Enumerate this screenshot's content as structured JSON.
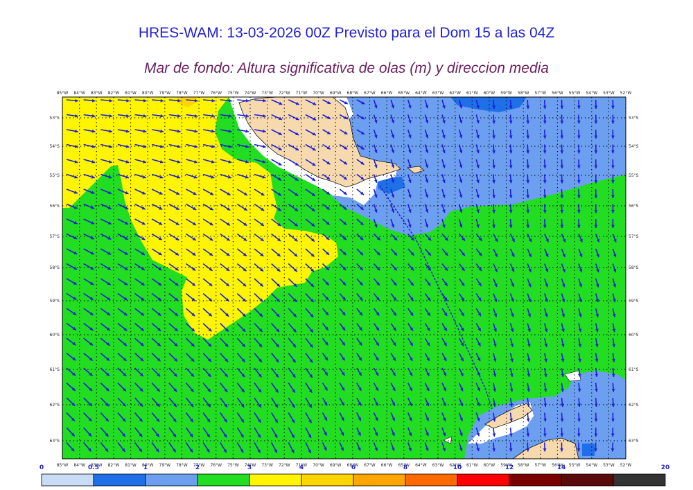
{
  "header": {
    "title": "HRES-WAM: 13-03-2026 00Z Previsto para el Dom 15 a las 04Z",
    "subtitle": "Mar de fondo: Altura significativa de olas (m) y direccion media"
  },
  "map": {
    "lon_labels": [
      "85°W",
      "84°W",
      "83°W",
      "82°W",
      "81°W",
      "80°W",
      "79°W",
      "78°W",
      "77°W",
      "76°W",
      "75°W",
      "74°W",
      "73°W",
      "72°W",
      "71°W",
      "70°W",
      "69°W",
      "68°W",
      "67°W",
      "66°W",
      "65°W",
      "64°W",
      "63°W",
      "62°W",
      "61°W",
      "60°W",
      "59°W",
      "58°W",
      "57°W",
      "56°W",
      "55°W",
      "54°W",
      "53°W",
      "52°W"
    ],
    "lat_labels": [
      "53°S",
      "54°S",
      "55°S",
      "56°S",
      "57°S",
      "58°S",
      "59°S",
      "60°S",
      "61°S",
      "62°S",
      "63°S"
    ],
    "colors": {
      "land": "#f7d9ae",
      "ice": "#ffffff",
      "arrow": "#1e1ed8",
      "track": "#1e1ed8"
    }
  },
  "colorbar": {
    "labels": [
      "0",
      "0.5",
      "1",
      "2",
      "3",
      "4",
      "6",
      "8",
      "10",
      "12",
      "14",
      "20"
    ],
    "colors": [
      "#c8dcf5",
      "#1e6fe8",
      "#6d9ff0",
      "#22dd22",
      "#fff500",
      "#ffd400",
      "#ffa500",
      "#ff6a00",
      "#ff0000",
      "#7a0000",
      "#5a0a0a",
      "#333333"
    ]
  }
}
